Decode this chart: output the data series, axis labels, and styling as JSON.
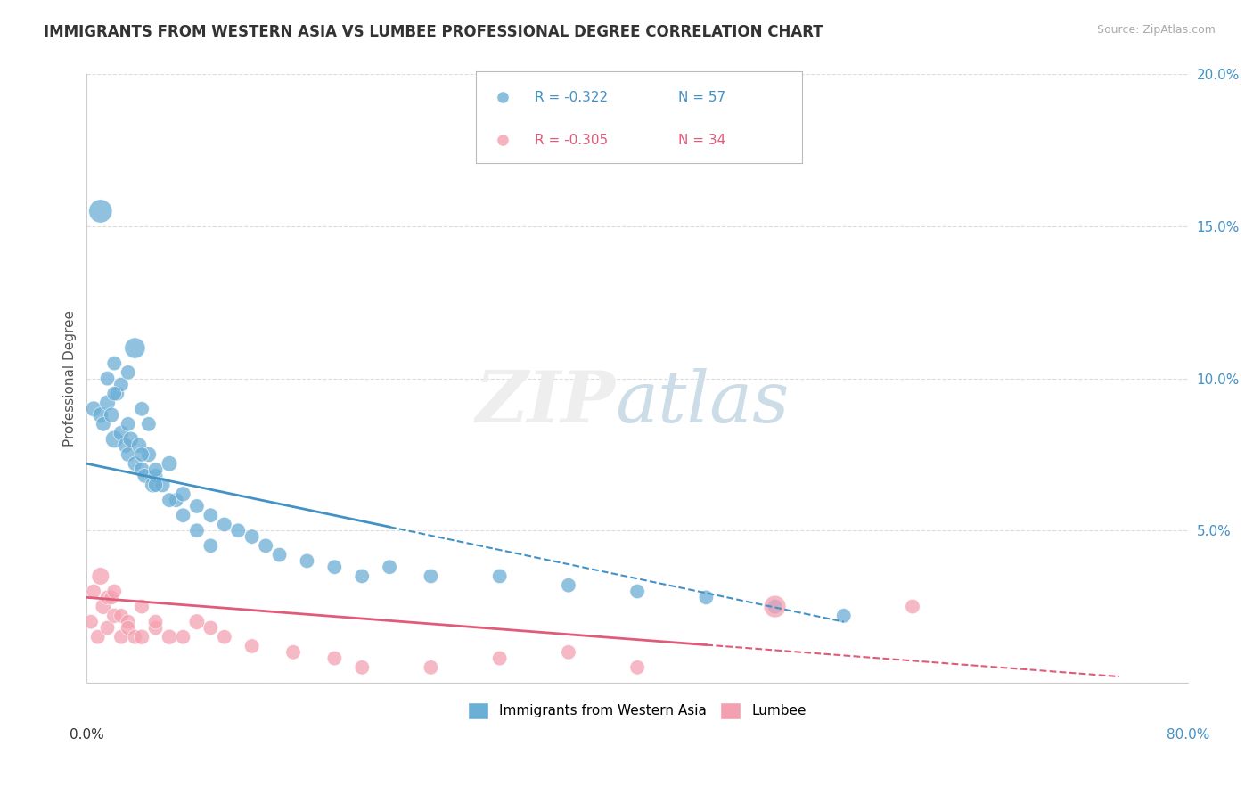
{
  "title": "IMMIGRANTS FROM WESTERN ASIA VS LUMBEE PROFESSIONAL DEGREE CORRELATION CHART",
  "source": "Source: ZipAtlas.com",
  "ylabel": "Professional Degree",
  "xlim": [
    0,
    80
  ],
  "ylim": [
    0,
    20
  ],
  "legend_blue_r": "R = -0.322",
  "legend_blue_n": "N = 57",
  "legend_pink_r": "R = -0.305",
  "legend_pink_n": "N = 34",
  "blue_color": "#6baed6",
  "pink_color": "#f4a0b0",
  "trendline_blue": "#4292c6",
  "trendline_pink": "#e05a7a",
  "background_color": "#ffffff",
  "blue_scatter_x": [
    0.5,
    1.0,
    1.2,
    1.5,
    1.5,
    1.8,
    2.0,
    2.0,
    2.2,
    2.5,
    2.5,
    2.8,
    3.0,
    3.0,
    3.2,
    3.5,
    3.5,
    3.8,
    4.0,
    4.0,
    4.2,
    4.5,
    4.5,
    4.8,
    5.0,
    5.0,
    5.5,
    6.0,
    6.5,
    7.0,
    8.0,
    9.0,
    10.0,
    11.0,
    12.0,
    13.0,
    14.0,
    16.0,
    18.0,
    20.0,
    22.0,
    25.0,
    30.0,
    35.0,
    40.0,
    45.0,
    50.0,
    55.0,
    1.0,
    2.0,
    3.0,
    4.0,
    5.0,
    6.0,
    7.0,
    8.0,
    9.0
  ],
  "blue_scatter_y": [
    9.0,
    8.8,
    8.5,
    9.2,
    10.0,
    8.8,
    8.0,
    10.5,
    9.5,
    8.2,
    9.8,
    7.8,
    7.5,
    10.2,
    8.0,
    7.2,
    11.0,
    7.8,
    7.0,
    9.0,
    6.8,
    7.5,
    8.5,
    6.5,
    6.8,
    7.0,
    6.5,
    7.2,
    6.0,
    6.2,
    5.8,
    5.5,
    5.2,
    5.0,
    4.8,
    4.5,
    4.2,
    4.0,
    3.8,
    3.5,
    3.8,
    3.5,
    3.5,
    3.2,
    3.0,
    2.8,
    2.5,
    2.2,
    15.5,
    9.5,
    8.5,
    7.5,
    6.5,
    6.0,
    5.5,
    5.0,
    4.5
  ],
  "blue_scatter_s": [
    40,
    40,
    35,
    40,
    35,
    38,
    50,
    35,
    35,
    40,
    35,
    38,
    35,
    35,
    40,
    35,
    70,
    38,
    40,
    35,
    35,
    38,
    35,
    40,
    35,
    35,
    38,
    40,
    35,
    38,
    35,
    35,
    35,
    35,
    35,
    35,
    35,
    35,
    35,
    35,
    35,
    35,
    35,
    35,
    35,
    35,
    35,
    35,
    90,
    35,
    35,
    35,
    35,
    35,
    35,
    35,
    35
  ],
  "pink_scatter_x": [
    0.3,
    0.5,
    0.8,
    1.0,
    1.2,
    1.5,
    1.5,
    1.8,
    2.0,
    2.0,
    2.5,
    2.5,
    3.0,
    3.0,
    3.5,
    4.0,
    4.0,
    5.0,
    5.0,
    6.0,
    7.0,
    8.0,
    9.0,
    10.0,
    12.0,
    15.0,
    18.0,
    20.0,
    25.0,
    30.0,
    35.0,
    40.0,
    50.0,
    60.0
  ],
  "pink_scatter_y": [
    2.0,
    3.0,
    1.5,
    3.5,
    2.5,
    1.8,
    2.8,
    2.8,
    2.2,
    3.0,
    1.5,
    2.2,
    2.0,
    1.8,
    1.5,
    1.5,
    2.5,
    1.8,
    2.0,
    1.5,
    1.5,
    2.0,
    1.8,
    1.5,
    1.2,
    1.0,
    0.8,
    0.5,
    0.5,
    0.8,
    1.0,
    0.5,
    2.5,
    2.5
  ],
  "pink_scatter_s": [
    35,
    35,
    35,
    50,
    40,
    35,
    35,
    35,
    38,
    35,
    35,
    35,
    35,
    35,
    35,
    38,
    35,
    35,
    35,
    38,
    35,
    40,
    35,
    35,
    35,
    35,
    35,
    35,
    35,
    35,
    35,
    35,
    80,
    35
  ],
  "blue_trend_x0": 0.0,
  "blue_trend_y0": 7.2,
  "blue_trend_x1": 55.0,
  "blue_trend_y1": 2.0,
  "blue_solid_end": 22.0,
  "pink_trend_x0": 0.0,
  "pink_trend_y0": 2.8,
  "pink_trend_x1": 75.0,
  "pink_trend_y1": 0.2,
  "pink_solid_end": 45.0
}
